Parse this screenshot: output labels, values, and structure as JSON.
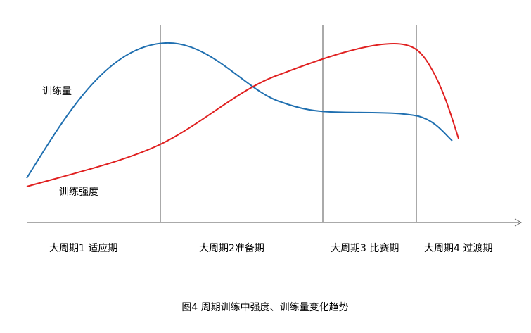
{
  "curve_labels": {
    "volume": "训练量",
    "intensity": "训练强度"
  },
  "phases": [
    "大周期1 适应期",
    "大周期2准备期",
    "大周期3 比赛期",
    "大周期4 过渡期"
  ],
  "caption": "图4 周期训练中强度、训练量变化趋势"
}
